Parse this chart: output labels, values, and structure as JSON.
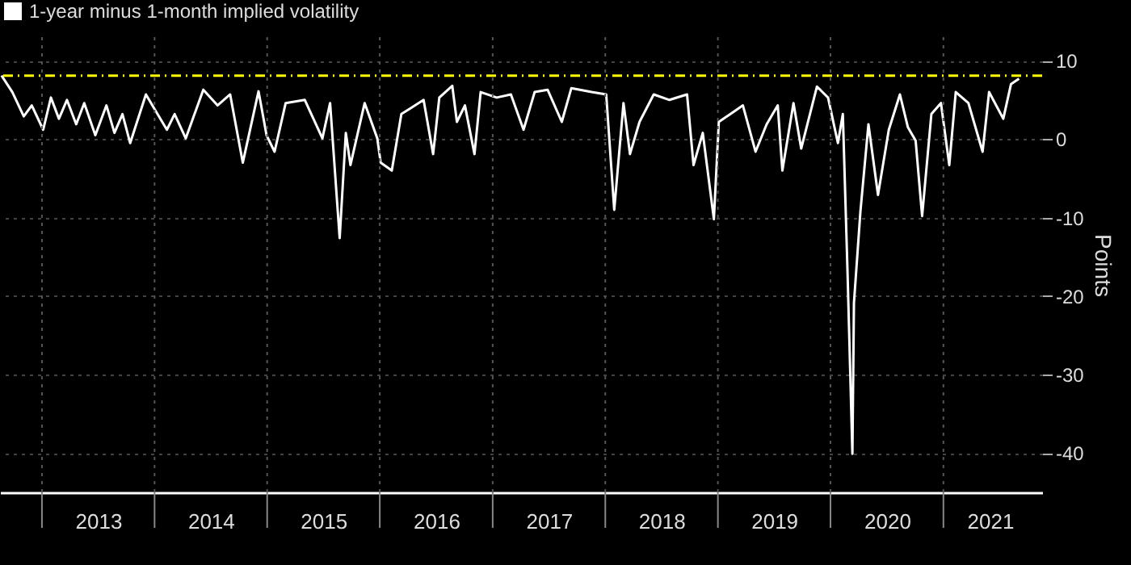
{
  "chart_data": {
    "type": "line",
    "x": [
      "2012-08-23",
      "2012-09-27",
      "2012-11-03",
      "2012-11-29",
      "2013-01-05",
      "2013-01-30",
      "2013-02-25",
      "2013-03-23",
      "2013-04-22",
      "2013-05-18",
      "2013-06-23",
      "2013-07-29",
      "2013-08-24",
      "2013-09-19",
      "2013-10-14",
      "2013-12-04",
      "2013-12-31",
      "2014-02-10",
      "2014-03-07",
      "2014-04-12",
      "2014-06-08",
      "2014-07-24",
      "2014-09-03",
      "2014-10-14",
      "2014-12-04",
      "2014-12-30",
      "2015-01-25",
      "2015-03-02",
      "2015-05-03",
      "2015-06-29",
      "2015-07-24",
      "2015-08-24",
      "2015-09-13",
      "2015-09-28",
      "2015-11-13",
      "2015-12-24",
      "2016-01-04",
      "2016-02-09",
      "2016-03-11",
      "2016-05-22",
      "2016-06-22",
      "2016-07-12",
      "2016-08-23",
      "2016-09-07",
      "2016-10-03",
      "2016-11-03",
      "2016-11-23",
      "2017-01-14",
      "2017-03-01",
      "2017-04-11",
      "2017-05-17",
      "2017-06-28",
      "2017-08-13",
      "2017-09-13",
      "2017-11-18",
      "2018-01-04",
      "2018-01-30",
      "2018-03-01",
      "2018-03-22",
      "2018-04-22",
      "2018-06-07",
      "2018-07-28",
      "2018-09-23",
      "2018-10-14",
      "2018-11-13",
      "2018-12-19",
      "2019-01-04",
      "2019-02-25",
      "2019-03-23",
      "2019-05-03",
      "2019-06-08",
      "2019-07-14",
      "2019-07-29",
      "2019-09-03",
      "2019-09-28",
      "2019-11-18",
      "2019-12-24",
      "2020-01-25",
      "2020-02-10",
      "2020-02-25",
      "2020-03-12",
      "2020-03-17",
      "2020-04-07",
      "2020-05-03",
      "2020-06-03",
      "2020-07-08",
      "2020-08-13",
      "2020-09-08",
      "2020-10-03",
      "2020-10-24",
      "2020-11-23",
      "2020-12-24",
      "2021-01-20",
      "2021-02-10",
      "2021-03-23",
      "2021-05-08",
      "2021-05-29",
      "2021-07-14",
      "2021-08-08",
      "2021-09-03"
    ],
    "series": [
      {
        "name": "1-year minus 1-month implied volatility",
        "color": "#ffffff",
        "values": [
          8.1,
          6.0,
          2.9,
          4.3,
          1.2,
          5.3,
          2.6,
          5.0,
          1.9,
          4.6,
          0.5,
          4.3,
          0.8,
          3.2,
          -0.5,
          5.7,
          3.9,
          1.2,
          3.2,
          0.1,
          6.3,
          4.3,
          5.7,
          -3.0,
          6.1,
          0.5,
          -1.6,
          4.6,
          5.0,
          0.1,
          4.6,
          -12.6,
          0.8,
          -3.3,
          4.6,
          0.1,
          -3.0,
          -4.0,
          3.2,
          5.0,
          -1.9,
          5.3,
          6.8,
          2.2,
          4.3,
          -1.9,
          6.0,
          5.3,
          5.7,
          1.2,
          6.0,
          6.3,
          2.2,
          6.5,
          6.0,
          5.7,
          -9.0,
          4.6,
          -1.9,
          2.2,
          5.7,
          5.0,
          5.7,
          -3.3,
          0.8,
          -10.2,
          2.2,
          3.6,
          4.3,
          -1.6,
          1.9,
          4.3,
          -4.0,
          4.6,
          -1.2,
          6.7,
          5.3,
          -0.5,
          3.2,
          -16.7,
          -40.1,
          -20.9,
          -9.2,
          1.9,
          -7.1,
          1.2,
          5.7,
          1.5,
          -0.2,
          -9.8,
          3.2,
          4.6,
          -3.3,
          6.0,
          4.6,
          -1.6,
          6.0,
          2.6,
          7.0,
          7.7
        ]
      }
    ],
    "ylabel": "Points",
    "xlim": [
      "2012-08-18",
      "2021-11-17"
    ],
    "ylim": [
      -45,
      13
    ],
    "yticks": [
      10,
      0,
      -10,
      -20,
      -30,
      -40
    ],
    "xticks": [
      {
        "value": "2013-01-01",
        "label": null
      },
      {
        "value": "2013-07-02",
        "label": "2013"
      },
      {
        "value": "2014-01-01",
        "label": null
      },
      {
        "value": "2014-07-02",
        "label": "2014"
      },
      {
        "value": "2015-01-01",
        "label": null
      },
      {
        "value": "2015-07-02",
        "label": "2015"
      },
      {
        "value": "2016-01-01",
        "label": null
      },
      {
        "value": "2016-07-02",
        "label": "2016"
      },
      {
        "value": "2017-01-01",
        "label": null
      },
      {
        "value": "2017-07-02",
        "label": "2017"
      },
      {
        "value": "2018-01-01",
        "label": null
      },
      {
        "value": "2018-07-02",
        "label": "2018"
      },
      {
        "value": "2019-01-01",
        "label": null
      },
      {
        "value": "2019-07-02",
        "label": "2019"
      },
      {
        "value": "2020-01-01",
        "label": null
      },
      {
        "value": "2020-07-02",
        "label": "2020"
      },
      {
        "value": "2021-01-01",
        "label": null
      },
      {
        "value": "2021-06-01",
        "label": "2021"
      }
    ],
    "ref_lines": [
      {
        "axis": "y",
        "value": 8.1,
        "label": null,
        "color": "#ffff00",
        "line_style": "dashed"
      }
    ],
    "grid": true,
    "legend": "top left",
    "line_style": "solid",
    "marker": "none"
  }
}
